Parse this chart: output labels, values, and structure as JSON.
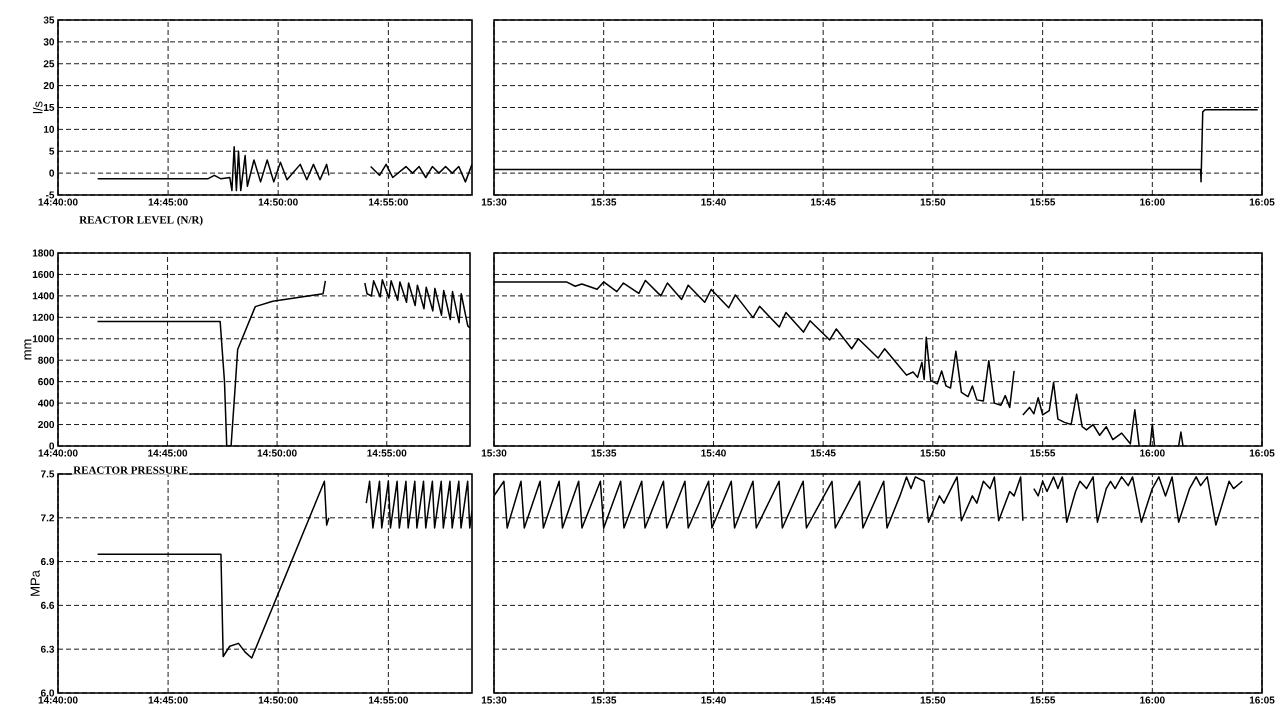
{
  "chart_data": [
    {
      "type": "line",
      "ylabel": "l/s",
      "color": "#000000",
      "grid": true,
      "xlim": [
        14.6667,
        14.98
      ],
      "ylim": [
        -5,
        35
      ],
      "yticks": [
        -5,
        0,
        5,
        10,
        15,
        20,
        25,
        30,
        35
      ],
      "xticks": [
        {
          "value": 14.6667,
          "label": "14:40:00"
        },
        {
          "value": 14.75,
          "label": "14:45:00"
        },
        {
          "value": 14.8333,
          "label": "14:50:00"
        },
        {
          "value": 14.9167,
          "label": "14:55:00"
        }
      ],
      "x": [
        14.6967,
        14.78,
        14.785,
        14.79,
        14.7967,
        14.7983,
        14.8,
        14.8017,
        14.8033,
        14.805,
        14.8083,
        14.81,
        14.815,
        14.82,
        14.825,
        14.83,
        14.835,
        14.84,
        14.85,
        14.855,
        14.86,
        14.865,
        14.87,
        14.8717,
        14.885,
        14.9033,
        14.91,
        14.915,
        14.92,
        14.93,
        14.935,
        14.94,
        14.945,
        14.95,
        14.955,
        14.96,
        14.965,
        14.97,
        14.975,
        14.98
      ],
      "values": [
        -1.3,
        -1.3,
        -0.5,
        -1.3,
        -1,
        -4,
        6,
        -4,
        5,
        -4,
        4,
        -3,
        3,
        -2,
        3,
        -2,
        2.5,
        -1.5,
        2,
        -1.5,
        2,
        -1.5,
        2,
        -0.5,
        null,
        1.5,
        -0.5,
        2,
        -1,
        1.5,
        0,
        1.5,
        -1,
        1.5,
        0,
        1.5,
        0,
        1.5,
        -2,
        2
      ]
    },
    {
      "type": "line",
      "color": "#000000",
      "grid": true,
      "tick_labels": "x",
      "xlim": [
        15.5,
        16.0833
      ],
      "ylim": [
        -5,
        35
      ],
      "yticks": [
        -5,
        0,
        5,
        10,
        15,
        20,
        25,
        30,
        35
      ],
      "xticks": [
        {
          "value": 15.5,
          "label": "15:30"
        },
        {
          "value": 15.5833,
          "label": "15:35"
        },
        {
          "value": 15.6667,
          "label": "15:40"
        },
        {
          "value": 15.75,
          "label": "15:45"
        },
        {
          "value": 15.8333,
          "label": "15:50"
        },
        {
          "value": 15.9167,
          "label": "15:55"
        },
        {
          "value": 16.0,
          "label": "16:00"
        },
        {
          "value": 16.0833,
          "label": "16:05"
        }
      ],
      "x": [
        15.5,
        16.0367,
        16.037,
        16.0383,
        16.04,
        16.08
      ],
      "values": [
        0.8,
        0.8,
        -2,
        14,
        14.5,
        14.5
      ]
    },
    {
      "type": "line",
      "title": "REACTOR LEVEL (N/R)",
      "ylabel": "mm",
      "color": "#000000",
      "grid": true,
      "xlim": [
        14.6667,
        14.98
      ],
      "ylim": [
        0,
        1800
      ],
      "yticks": [
        0,
        200,
        400,
        600,
        800,
        1000,
        1200,
        1400,
        1600,
        1800
      ],
      "xticks": [
        {
          "value": 14.6667,
          "label": "14:40:00"
        },
        {
          "value": 14.75,
          "label": "14:45:00"
        },
        {
          "value": 14.8333,
          "label": "14:50:00"
        },
        {
          "value": 14.9167,
          "label": "14:55:00"
        }
      ],
      "x": [
        14.6967,
        14.79,
        14.7933,
        14.795,
        14.7983,
        14.8017,
        14.8033,
        14.81,
        14.8167,
        14.83,
        14.8683,
        14.87,
        14.885,
        14.9,
        14.9017,
        14.905,
        14.9067,
        14.9117,
        14.9133,
        14.9183,
        14.92,
        14.925,
        14.9267,
        14.9317,
        14.9333,
        14.9383,
        14.94,
        14.945,
        14.9467,
        14.9517,
        14.9533,
        14.9583,
        14.96,
        14.965,
        14.9667,
        14.9717,
        14.9733,
        14.9783,
        14.98
      ],
      "values": [
        1160,
        1160,
        600,
        0,
        0,
        600,
        900,
        1100,
        1300,
        1350,
        1420,
        1540,
        null,
        1520,
        1420,
        1400,
        1540,
        1390,
        1550,
        1380,
        1540,
        1360,
        1530,
        1340,
        1520,
        1310,
        1500,
        1280,
        1480,
        1260,
        1470,
        1220,
        1450,
        1180,
        1440,
        1150,
        1420,
        1120,
        1100
      ]
    },
    {
      "type": "line",
      "color": "#000000",
      "grid": true,
      "tick_labels": "x",
      "xlim": [
        15.5,
        16.0833
      ],
      "ylim": [
        0,
        1800
      ],
      "yticks": [
        0,
        200,
        400,
        600,
        800,
        1000,
        1200,
        1400,
        1600,
        1800
      ],
      "xticks": [
        {
          "value": 15.5,
          "label": "15:30"
        },
        {
          "value": 15.5833,
          "label": "15:35"
        },
        {
          "value": 15.6667,
          "label": "15:40"
        },
        {
          "value": 15.75,
          "label": "15:45"
        },
        {
          "value": 15.8333,
          "label": "15:50"
        },
        {
          "value": 15.9167,
          "label": "15:55"
        },
        {
          "value": 16.0,
          "label": "16:00"
        },
        {
          "value": 16.0833,
          "label": "16:05"
        }
      ],
      "x": [
        15.5,
        15.555,
        15.5617,
        15.5667,
        15.5783,
        15.5833,
        15.5933,
        15.5983,
        15.61,
        15.615,
        15.6267,
        15.6317,
        15.6425,
        15.6475,
        15.66,
        15.665,
        15.6783,
        15.6833,
        15.6967,
        15.7017,
        15.7167,
        15.7217,
        15.735,
        15.74,
        15.755,
        15.76,
        15.7717,
        15.7767,
        15.7917,
        15.7967,
        15.8083,
        15.8133,
        15.8183,
        15.8217,
        15.825,
        15.8267,
        15.8283,
        15.8317,
        15.8367,
        15.84,
        15.8433,
        15.8467,
        15.8508,
        15.855,
        15.86,
        15.8633,
        15.8667,
        15.8717,
        15.8758,
        15.88,
        15.885,
        15.8883,
        15.8917,
        15.895,
        15.8983,
        15.9017,
        15.9067,
        15.91,
        15.9133,
        15.9167,
        15.9217,
        15.925,
        15.9283,
        15.9333,
        15.9383,
        15.9425,
        15.9467,
        15.95,
        15.955,
        15.96,
        15.965,
        15.97,
        15.9767,
        15.9833,
        15.9867,
        15.99,
        15.9942,
        15.9983,
        16.0,
        16.0017,
        16.01,
        16.02,
        16.0217,
        16.0233
      ],
      "values": [
        1530,
        1530,
        1490,
        1510,
        1462,
        1530,
        1440,
        1520,
        1424,
        1544,
        1400,
        1520,
        1366,
        1500,
        1340,
        1460,
        1289,
        1409,
        1197,
        1303,
        1110,
        1245,
        1062,
        1168,
        989,
        1091,
        907,
        1000,
        820,
        907,
        734,
        661,
        690,
        640,
        780,
        620,
        1013,
        610,
        580,
        700,
        560,
        540,
        883,
        500,
        460,
        560,
        430,
        420,
        796,
        400,
        380,
        470,
        360,
        700,
        null,
        290,
        360,
        300,
        450,
        290,
        330,
        594,
        250,
        220,
        200,
        483,
        180,
        150,
        200,
        100,
        180,
        60,
        120,
        20,
        338,
        0,
        null,
        0,
        203,
        0,
        null,
        0,
        130,
        0
      ]
    },
    {
      "type": "line",
      "title": "REACTOR PRESSURE",
      "ylabel": "MPa",
      "color": "#000000",
      "grid": true,
      "xlim": [
        14.6667,
        14.98
      ],
      "ylim": [
        6.0,
        7.5
      ],
      "yticks": [
        {
          "value": 6.0,
          "label": "6.0"
        },
        6.3,
        6.6,
        6.9,
        7.2,
        7.5
      ],
      "xticks": [
        {
          "value": 14.6667,
          "label": "14:40:00"
        },
        {
          "value": 14.75,
          "label": "14:45:00"
        },
        {
          "value": 14.8333,
          "label": "14:50:00"
        },
        {
          "value": 14.9167,
          "label": "14:55:00"
        }
      ],
      "x": [
        14.6967,
        14.79,
        14.7917,
        14.7967,
        14.8033,
        14.8083,
        14.8133,
        14.8683,
        14.87,
        14.8717,
        14.885,
        14.9,
        14.9025,
        14.905,
        14.91,
        14.9117,
        14.9167,
        14.9183,
        14.9233,
        14.925,
        14.93,
        14.9317,
        14.9367,
        14.9383,
        14.9433,
        14.945,
        14.95,
        14.9517,
        14.9567,
        14.9583,
        14.9633,
        14.965,
        14.97,
        14.9717,
        14.9767,
        14.9783,
        14.98
      ],
      "values": [
        6.95,
        6.95,
        6.25,
        6.32,
        6.34,
        6.28,
        6.24,
        7.45,
        7.15,
        7.2,
        null,
        7.3,
        7.45,
        7.13,
        7.45,
        7.13,
        7.45,
        7.13,
        7.45,
        7.13,
        7.45,
        7.13,
        7.45,
        7.13,
        7.45,
        7.13,
        7.45,
        7.13,
        7.45,
        7.13,
        7.45,
        7.13,
        7.45,
        7.13,
        7.45,
        7.13,
        7.25
      ]
    },
    {
      "type": "line",
      "color": "#000000",
      "grid": true,
      "tick_labels": "x",
      "xlim": [
        15.5,
        16.0833
      ],
      "ylim": [
        6.0,
        7.5
      ],
      "yticks": [
        6.0,
        6.3,
        6.6,
        6.9,
        7.2,
        7.5
      ],
      "xticks": [
        {
          "value": 15.5,
          "label": "15:30"
        },
        {
          "value": 15.5833,
          "label": "15:35"
        },
        {
          "value": 15.6667,
          "label": "15:40"
        },
        {
          "value": 15.75,
          "label": "15:45"
        },
        {
          "value": 15.8333,
          "label": "15:50"
        },
        {
          "value": 15.9167,
          "label": "15:55"
        },
        {
          "value": 16.0,
          "label": "16:00"
        },
        {
          "value": 16.0833,
          "label": "16:05"
        }
      ],
      "x": [
        15.5,
        15.5075,
        15.51,
        15.5205,
        15.523,
        15.535,
        15.5375,
        15.5495,
        15.552,
        15.5643,
        15.5668,
        15.5808,
        15.5833,
        15.5962,
        15.5987,
        15.6122,
        15.6147,
        15.6287,
        15.6312,
        15.645,
        15.6475,
        15.663,
        15.6655,
        15.6802,
        15.6827,
        15.6967,
        15.6992,
        15.7165,
        15.719,
        15.7348,
        15.7373,
        15.7567,
        15.7592,
        15.7777,
        15.7802,
        15.796,
        15.7985,
        15.8083,
        15.8133,
        15.8167,
        15.82,
        15.8267,
        15.83,
        15.8383,
        15.8417,
        15.8483,
        15.8517,
        15.855,
        15.8633,
        15.8667,
        15.8717,
        15.8767,
        15.88,
        15.8833,
        15.8917,
        15.895,
        15.9,
        15.9017,
        15.905,
        15.91,
        15.9133,
        15.9167,
        15.92,
        15.925,
        15.9283,
        15.9317,
        15.935,
        15.9417,
        15.945,
        15.95,
        15.955,
        15.9583,
        15.965,
        15.9683,
        15.9717,
        15.9767,
        15.9817,
        15.985,
        15.9917,
        16.0,
        16.005,
        16.01,
        16.015,
        16.02,
        16.0283,
        16.0333,
        16.0367,
        16.0417,
        16.0483,
        16.0583,
        16.0617,
        16.0683
      ],
      "values": [
        7.35,
        7.45,
        7.13,
        7.45,
        7.13,
        7.45,
        7.13,
        7.45,
        7.13,
        7.45,
        7.13,
        7.45,
        7.13,
        7.45,
        7.13,
        7.45,
        7.13,
        7.45,
        7.13,
        7.45,
        7.13,
        7.45,
        7.13,
        7.45,
        7.13,
        7.45,
        7.13,
        7.45,
        7.13,
        7.45,
        7.13,
        7.45,
        7.13,
        7.45,
        7.13,
        7.45,
        7.13,
        7.35,
        7.48,
        7.4,
        7.48,
        7.45,
        7.17,
        7.35,
        7.3,
        7.42,
        7.48,
        7.18,
        7.35,
        7.3,
        7.45,
        7.4,
        7.48,
        7.18,
        7.38,
        7.35,
        7.48,
        7.18,
        null,
        7.4,
        7.35,
        7.45,
        7.38,
        7.48,
        7.4,
        7.48,
        7.17,
        7.38,
        7.45,
        7.4,
        7.48,
        7.17,
        7.4,
        7.45,
        7.4,
        7.48,
        7.42,
        7.48,
        7.17,
        7.4,
        7.48,
        7.35,
        7.48,
        7.17,
        7.4,
        7.48,
        7.42,
        7.48,
        7.15,
        7.45,
        7.4,
        7.45
      ]
    }
  ]
}
